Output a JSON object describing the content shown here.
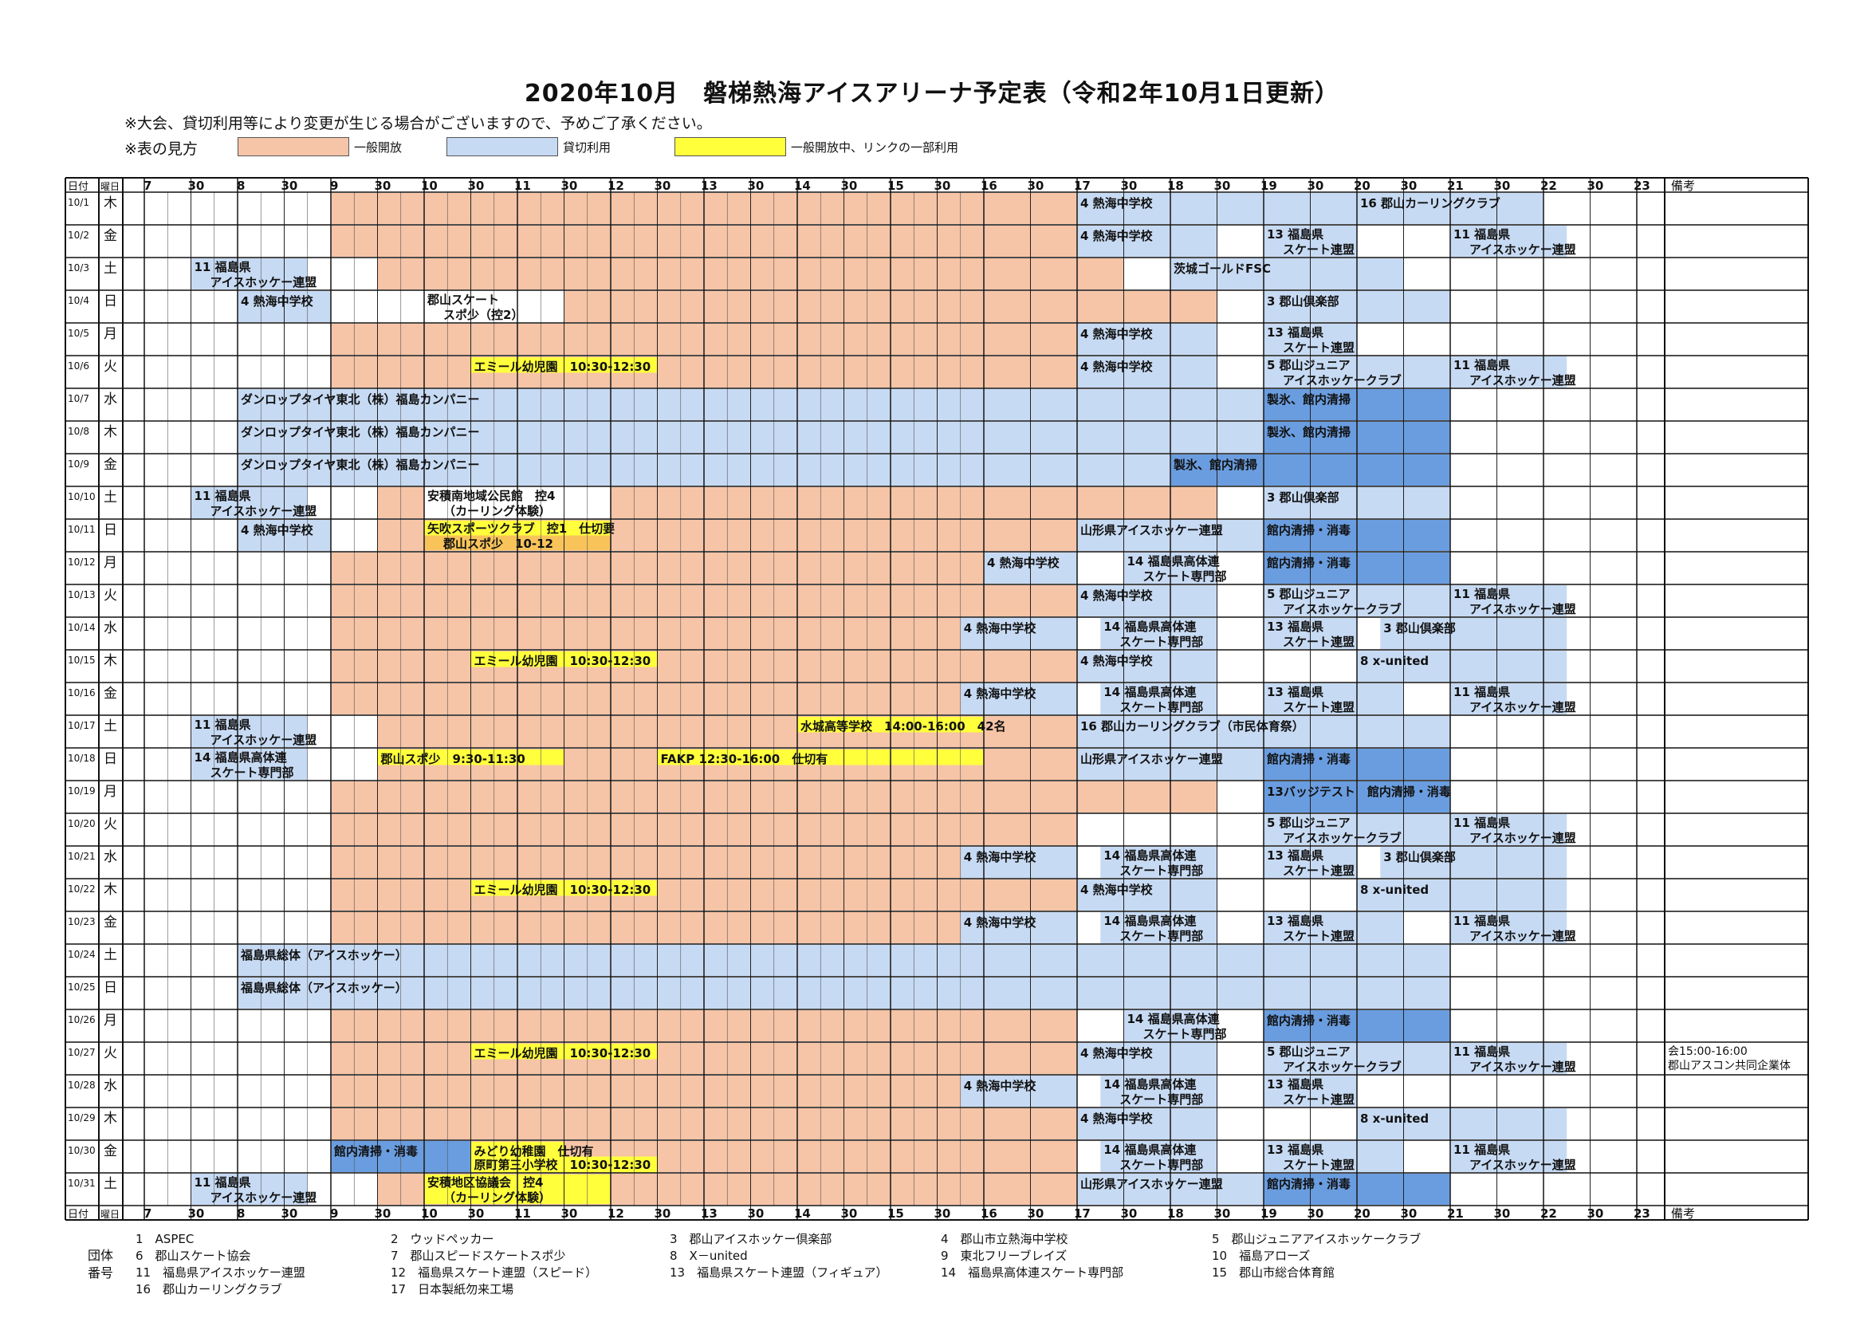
{
  "title": "2020年10月　磐梯熱海アイスアリーナ予定表（令和2年10月1日更新）",
  "note": "※大会、貸切利用等により変更が生じる場合がございますので、予めご了承ください。",
  "legend": {
    "label": "※表の見方",
    "items": [
      {
        "type": "public",
        "text": "一般開放",
        "color": "#f6c4a6"
      },
      {
        "type": "reserved",
        "text": "貸切利用",
        "color": "#c7daf3"
      },
      {
        "type": "partial",
        "text": "一般開放中、リンクの一部利用",
        "color": "#ffff3c"
      }
    ]
  },
  "colors": {
    "public": "#f6c4a6",
    "reserved": "#c7daf3",
    "dark": "#6a9ddf",
    "partial": "#ffff3c",
    "orange": "#f8c45a"
  },
  "header": {
    "date_label": "日付",
    "dow_label": "曜日",
    "remarks_label": "備考",
    "hour_labels": [
      "7",
      "30",
      "8",
      "30",
      "9",
      "30",
      "10",
      "30",
      "11",
      "30",
      "12",
      "30",
      "13",
      "30",
      "14",
      "30",
      "15",
      "30",
      "16",
      "30",
      "17",
      "30",
      "18",
      "30",
      "19",
      "30",
      "20",
      "30",
      "21",
      "30",
      "22",
      "30",
      "23"
    ]
  },
  "days": [
    {
      "date": "10/1",
      "dow": "木",
      "remark": "",
      "slots": [
        {
          "s": 9,
          "e": 17,
          "c": "public"
        },
        {
          "s": 17,
          "e": 20,
          "c": "reserved",
          "l": "4 熱海中学校"
        },
        {
          "s": 20,
          "e": 22,
          "c": "reserved",
          "l": "16 郡山カーリングクラブ"
        }
      ]
    },
    {
      "date": "10/2",
      "dow": "金",
      "remark": "",
      "slots": [
        {
          "s": 9,
          "e": 17,
          "c": "public"
        },
        {
          "s": 17,
          "e": 18.5,
          "c": "reserved",
          "l": "4 熱海中学校"
        },
        {
          "s": 19,
          "e": 20,
          "c": "reserved",
          "l": "13 福島県",
          "l2": "スケート連盟"
        },
        {
          "s": 21,
          "e": 22.25,
          "c": "reserved",
          "l": "11 福島県",
          "l2": "アイスホッケー連盟"
        }
      ]
    },
    {
      "date": "10/3",
      "dow": "土",
      "remark": "",
      "slots": [
        {
          "s": 7.5,
          "e": 8.75,
          "c": "reserved",
          "l": "11 福島県",
          "l2": "アイスホッケー連盟"
        },
        {
          "s": 9.5,
          "e": 17.5,
          "c": "public"
        },
        {
          "s": 18,
          "e": 20.5,
          "c": "reserved",
          "l": "茨城ゴールドFSC"
        }
      ]
    },
    {
      "date": "10/4",
      "dow": "日",
      "remark": "",
      "slots": [
        {
          "s": 8,
          "e": 9,
          "c": "reserved",
          "l": "4 熱海中学校"
        },
        {
          "s": 10,
          "e": 11,
          "c": "plain",
          "l": "郡山スケート",
          "l2": "スポ少（控2）"
        },
        {
          "s": 11.5,
          "e": 18.5,
          "c": "public"
        },
        {
          "s": 19,
          "e": 21,
          "c": "reserved",
          "l": "3 郡山倶楽部"
        }
      ]
    },
    {
      "date": "10/5",
      "dow": "月",
      "remark": "",
      "slots": [
        {
          "s": 9,
          "e": 17,
          "c": "public"
        },
        {
          "s": 17,
          "e": 18.5,
          "c": "reserved",
          "l": "4 熱海中学校"
        },
        {
          "s": 19,
          "e": 20,
          "c": "reserved",
          "l": "13 福島県",
          "l2": "スケート連盟"
        }
      ]
    },
    {
      "date": "10/6",
      "dow": "火",
      "remark": "",
      "slots": [
        {
          "s": 9,
          "e": 17,
          "c": "public"
        },
        {
          "s": 10.5,
          "e": 12.5,
          "c": "partial",
          "l": "エミール幼児園　10:30-12:30"
        },
        {
          "s": 17,
          "e": 18.5,
          "c": "reserved",
          "l": "4 熱海中学校"
        },
        {
          "s": 19,
          "e": 21,
          "c": "reserved",
          "l": "5 郡山ジュニア",
          "l2": "アイスホッケークラブ"
        },
        {
          "s": 21,
          "e": 22.25,
          "c": "reserved",
          "l": "11 福島県",
          "l2": "アイスホッケー連盟"
        }
      ]
    },
    {
      "date": "10/7",
      "dow": "水",
      "remark": "",
      "slots": [
        {
          "s": 8,
          "e": 19,
          "c": "reserved",
          "l": "ダンロップタイヤ東北（株）福島カンパニー"
        },
        {
          "s": 19,
          "e": 21,
          "c": "dark",
          "l": "製氷、館内清掃"
        }
      ]
    },
    {
      "date": "10/8",
      "dow": "木",
      "remark": "",
      "slots": [
        {
          "s": 8,
          "e": 19,
          "c": "reserved",
          "l": "ダンロップタイヤ東北（株）福島カンパニー"
        },
        {
          "s": 19,
          "e": 21,
          "c": "dark",
          "l": "製氷、館内清掃"
        }
      ]
    },
    {
      "date": "10/9",
      "dow": "金",
      "remark": "",
      "slots": [
        {
          "s": 8,
          "e": 18,
          "c": "reserved",
          "l": "ダンロップタイヤ東北（株）福島カンパニー"
        },
        {
          "s": 18,
          "e": 21,
          "c": "dark",
          "l": "製氷、館内清掃"
        }
      ]
    },
    {
      "date": "10/10",
      "dow": "土",
      "remark": "",
      "slots": [
        {
          "s": 7.5,
          "e": 8.75,
          "c": "reserved",
          "l": "11 福島県",
          "l2": "アイスホッケー連盟"
        },
        {
          "s": 9.5,
          "e": 18.5,
          "c": "public"
        },
        {
          "s": 10,
          "e": 12,
          "c": "plain",
          "l": "安積南地域公民館　控4",
          "l2": "（カーリング体験）"
        },
        {
          "s": 19,
          "e": 21,
          "c": "reserved",
          "l": "3 郡山倶楽部"
        }
      ]
    },
    {
      "date": "10/11",
      "dow": "日",
      "remark": "",
      "slots": [
        {
          "s": 8,
          "e": 9,
          "c": "reserved",
          "l": "4 熱海中学校"
        },
        {
          "s": 9.5,
          "e": 17,
          "c": "public"
        },
        {
          "s": 10,
          "e": 12,
          "c": "partial",
          "l": "矢吹スポーツクラブ　控1　仕切要",
          "l2": "郡山スポ少　10-12",
          "c2": "orange"
        },
        {
          "s": 17,
          "e": 19,
          "c": "reserved",
          "l": "山形県アイスホッケー連盟"
        },
        {
          "s": 19,
          "e": 21,
          "c": "dark",
          "l": "館内清掃・消毒"
        }
      ]
    },
    {
      "date": "10/12",
      "dow": "月",
      "remark": "",
      "slots": [
        {
          "s": 9,
          "e": 16,
          "c": "public"
        },
        {
          "s": 16,
          "e": 17,
          "c": "reserved",
          "l": "4 熱海中学校"
        },
        {
          "s": 17.5,
          "e": 18.5,
          "c": "reserved",
          "l": "14 福島県高体連",
          "l2": "スケート専門部"
        },
        {
          "s": 19,
          "e": 21,
          "c": "dark",
          "l": "館内清掃・消毒"
        }
      ]
    },
    {
      "date": "10/13",
      "dow": "火",
      "remark": "",
      "slots": [
        {
          "s": 9,
          "e": 17,
          "c": "public"
        },
        {
          "s": 17,
          "e": 18.5,
          "c": "reserved",
          "l": "4 熱海中学校"
        },
        {
          "s": 19,
          "e": 21,
          "c": "reserved",
          "l": "5 郡山ジュニア",
          "l2": "アイスホッケークラブ"
        },
        {
          "s": 21,
          "e": 22.25,
          "c": "reserved",
          "l": "11 福島県",
          "l2": "アイスホッケー連盟"
        }
      ]
    },
    {
      "date": "10/14",
      "dow": "水",
      "remark": "",
      "slots": [
        {
          "s": 9,
          "e": 15.75,
          "c": "public"
        },
        {
          "s": 15.75,
          "e": 17,
          "c": "reserved",
          "l": "4 熱海中学校"
        },
        {
          "s": 17.25,
          "e": 18.5,
          "c": "reserved",
          "l": "14 福島県高体連",
          "l2": "スケート専門部"
        },
        {
          "s": 19,
          "e": 20,
          "c": "reserved",
          "l": "13 福島県",
          "l2": "スケート連盟"
        },
        {
          "s": 20.25,
          "e": 22.25,
          "c": "reserved",
          "l": "3 郡山倶楽部"
        }
      ]
    },
    {
      "date": "10/15",
      "dow": "木",
      "remark": "",
      "slots": [
        {
          "s": 9,
          "e": 17,
          "c": "public"
        },
        {
          "s": 10.5,
          "e": 12.5,
          "c": "partial",
          "l": "エミール幼児園　10:30-12:30"
        },
        {
          "s": 17,
          "e": 18.5,
          "c": "reserved",
          "l": "4 熱海中学校"
        },
        {
          "s": 20,
          "e": 22.25,
          "c": "reserved",
          "l": "8 x-united"
        }
      ]
    },
    {
      "date": "10/16",
      "dow": "金",
      "remark": "",
      "slots": [
        {
          "s": 9,
          "e": 15.75,
          "c": "public"
        },
        {
          "s": 15.75,
          "e": 17,
          "c": "reserved",
          "l": "4 熱海中学校"
        },
        {
          "s": 17.25,
          "e": 18.5,
          "c": "reserved",
          "l": "14 福島県高体連",
          "l2": "スケート専門部"
        },
        {
          "s": 19,
          "e": 20.5,
          "c": "reserved",
          "l": "13 福島県",
          "l2": "スケート連盟"
        },
        {
          "s": 21,
          "e": 22.25,
          "c": "reserved",
          "l": "11 福島県",
          "l2": "アイスホッケー連盟"
        }
      ]
    },
    {
      "date": "10/17",
      "dow": "土",
      "remark": "",
      "slots": [
        {
          "s": 7.5,
          "e": 8.75,
          "c": "reserved",
          "l": "11 福島県",
          "l2": "アイスホッケー連盟"
        },
        {
          "s": 9.5,
          "e": 17,
          "c": "public"
        },
        {
          "s": 14,
          "e": 16,
          "c": "partial",
          "l": "水城高等学校　14:00-16:00　42名"
        },
        {
          "s": 17,
          "e": 21,
          "c": "reserved",
          "l": "16 郡山カーリングクラブ（市民体育祭）"
        }
      ]
    },
    {
      "date": "10/18",
      "dow": "日",
      "remark": "",
      "slots": [
        {
          "s": 7.5,
          "e": 8.75,
          "c": "reserved",
          "l": "14 福島県高体連",
          "l2": "スケート専門部"
        },
        {
          "s": 9.5,
          "e": 17,
          "c": "public"
        },
        {
          "s": 9.5,
          "e": 11.5,
          "c": "partial",
          "l": "郡山スポ少　9:30-11:30"
        },
        {
          "s": 12.5,
          "e": 16,
          "c": "partial",
          "l": "FAKP 12:30-16:00　仕切有"
        },
        {
          "s": 17,
          "e": 19,
          "c": "reserved",
          "l": "山形県アイスホッケー連盟"
        },
        {
          "s": 19,
          "e": 21,
          "c": "dark",
          "l": "館内清掃・消毒"
        }
      ]
    },
    {
      "date": "10/19",
      "dow": "月",
      "remark": "",
      "slots": [
        {
          "s": 9,
          "e": 18.5,
          "c": "public"
        },
        {
          "s": 19,
          "e": 21,
          "c": "dark",
          "l": "13バッジテスト　館内清掃・消毒"
        }
      ]
    },
    {
      "date": "10/20",
      "dow": "火",
      "remark": "",
      "slots": [
        {
          "s": 9,
          "e": 17,
          "c": "public"
        },
        {
          "s": 19,
          "e": 21,
          "c": "reserved",
          "l": "5 郡山ジュニア",
          "l2": "アイスホッケークラブ"
        },
        {
          "s": 21,
          "e": 22.25,
          "c": "reserved",
          "l": "11 福島県",
          "l2": "アイスホッケー連盟"
        }
      ]
    },
    {
      "date": "10/21",
      "dow": "水",
      "remark": "",
      "slots": [
        {
          "s": 9,
          "e": 15.75,
          "c": "public"
        },
        {
          "s": 15.75,
          "e": 17,
          "c": "reserved",
          "l": "4 熱海中学校"
        },
        {
          "s": 17.25,
          "e": 18.5,
          "c": "reserved",
          "l": "14 福島県高体連",
          "l2": "スケート専門部"
        },
        {
          "s": 19,
          "e": 20,
          "c": "reserved",
          "l": "13 福島県",
          "l2": "スケート連盟"
        },
        {
          "s": 20.25,
          "e": 22.25,
          "c": "reserved",
          "l": "3 郡山倶楽部"
        }
      ]
    },
    {
      "date": "10/22",
      "dow": "木",
      "remark": "",
      "slots": [
        {
          "s": 9,
          "e": 17,
          "c": "public"
        },
        {
          "s": 10.5,
          "e": 12.5,
          "c": "partial",
          "l": "エミール幼児園　10:30-12:30"
        },
        {
          "s": 17,
          "e": 18.5,
          "c": "reserved",
          "l": "4 熱海中学校"
        },
        {
          "s": 20,
          "e": 22.25,
          "c": "reserved",
          "l": "8 x-united"
        }
      ]
    },
    {
      "date": "10/23",
      "dow": "金",
      "remark": "",
      "slots": [
        {
          "s": 9,
          "e": 15.75,
          "c": "public"
        },
        {
          "s": 15.75,
          "e": 17,
          "c": "reserved",
          "l": "4 熱海中学校"
        },
        {
          "s": 17.25,
          "e": 18.5,
          "c": "reserved",
          "l": "14 福島県高体連",
          "l2": "スケート専門部"
        },
        {
          "s": 19,
          "e": 20.5,
          "c": "reserved",
          "l": "13 福島県",
          "l2": "スケート連盟"
        },
        {
          "s": 21,
          "e": 22.25,
          "c": "reserved",
          "l": "11 福島県",
          "l2": "アイスホッケー連盟"
        }
      ]
    },
    {
      "date": "10/24",
      "dow": "土",
      "remark": "",
      "slots": [
        {
          "s": 8,
          "e": 21,
          "c": "reserved",
          "l": "福島県総体（アイスホッケー）"
        }
      ]
    },
    {
      "date": "10/25",
      "dow": "日",
      "remark": "",
      "slots": [
        {
          "s": 8,
          "e": 21,
          "c": "reserved",
          "l": "福島県総体（アイスホッケー）"
        }
      ]
    },
    {
      "date": "10/26",
      "dow": "月",
      "remark": "",
      "slots": [
        {
          "s": 9,
          "e": 17,
          "c": "public"
        },
        {
          "s": 17.5,
          "e": 18.5,
          "c": "reserved",
          "l": "14 福島県高体連",
          "l2": "スケート専門部"
        },
        {
          "s": 19,
          "e": 21,
          "c": "dark",
          "l": "館内清掃・消毒"
        }
      ]
    },
    {
      "date": "10/27",
      "dow": "火",
      "remark": "会15:00-16:00 郡山アスコン共同企業体",
      "remarks": [
        "会15:00-16:00",
        "郡山アスコン共同企業体"
      ],
      "slots": [
        {
          "s": 9,
          "e": 17,
          "c": "public"
        },
        {
          "s": 10.5,
          "e": 12.5,
          "c": "partial",
          "l": "エミール幼児園　10:30-12:30"
        },
        {
          "s": 17,
          "e": 18.5,
          "c": "reserved",
          "l": "4 熱海中学校"
        },
        {
          "s": 19,
          "e": 21,
          "c": "reserved",
          "l": "5 郡山ジュニア",
          "l2": "アイスホッケークラブ"
        },
        {
          "s": 21,
          "e": 22.25,
          "c": "reserved",
          "l": "11 福島県",
          "l2": "アイスホッケー連盟"
        }
      ]
    },
    {
      "date": "10/28",
      "dow": "水",
      "remark": "",
      "slots": [
        {
          "s": 9,
          "e": 15.75,
          "c": "public"
        },
        {
          "s": 15.75,
          "e": 17,
          "c": "reserved",
          "l": "4 熱海中学校"
        },
        {
          "s": 17.25,
          "e": 18.5,
          "c": "reserved",
          "l": "14 福島県高体連",
          "l2": "スケート専門部"
        },
        {
          "s": 19,
          "e": 20,
          "c": "reserved",
          "l": "13 福島県",
          "l2": "スケート連盟"
        }
      ]
    },
    {
      "date": "10/29",
      "dow": "木",
      "remark": "",
      "slots": [
        {
          "s": 9,
          "e": 17,
          "c": "public"
        },
        {
          "s": 17,
          "e": 18.5,
          "c": "reserved",
          "l": "4 熱海中学校"
        },
        {
          "s": 20,
          "e": 22.25,
          "c": "reserved",
          "l": "8 x-united"
        }
      ]
    },
    {
      "date": "10/30",
      "dow": "金",
      "remark": "",
      "slots": [
        {
          "s": 9,
          "e": 10.5,
          "c": "dark",
          "l": "館内清掃・消毒"
        },
        {
          "s": 10.5,
          "e": 17,
          "c": "public"
        },
        {
          "s": 10.5,
          "e": 11.5,
          "c": "partial",
          "l": "みどり幼稚園　仕切有"
        },
        {
          "s": 10.5,
          "e": 12.5,
          "c": "partial",
          "l2": "原町第三小学校　10:30-12:30",
          "half": "bottom"
        },
        {
          "s": 17.25,
          "e": 18.5,
          "c": "reserved",
          "l": "14 福島県高体連",
          "l2": "スケート専門部"
        },
        {
          "s": 19,
          "e": 20.5,
          "c": "reserved",
          "l": "13 福島県",
          "l2": "スケート連盟"
        },
        {
          "s": 21,
          "e": 22.25,
          "c": "reserved",
          "l": "11 福島県",
          "l2": "アイスホッケー連盟"
        }
      ]
    },
    {
      "date": "10/31",
      "dow": "土",
      "remark": "",
      "slots": [
        {
          "s": 7.5,
          "e": 8.75,
          "c": "reserved",
          "l": "11 福島県",
          "l2": "アイスホッケー連盟"
        },
        {
          "s": 9.5,
          "e": 17,
          "c": "public"
        },
        {
          "s": 10,
          "e": 12,
          "c": "partial",
          "l": "安積地区協議会　控4",
          "l2": "（カーリング体験）"
        },
        {
          "s": 17,
          "e": 19,
          "c": "reserved",
          "l": "山形県アイスホッケー連盟"
        },
        {
          "s": 19,
          "e": 21,
          "c": "dark",
          "l": "館内清掃・消毒"
        }
      ]
    }
  ],
  "footer": {
    "side_label_1": "団体",
    "side_label_2": "番号",
    "groups": [
      "1　ASPEC",
      "2　ウッドペッカー",
      "3　郡山アイスホッケー倶楽部",
      "4　郡山市立熱海中学校",
      "5　郡山ジュニアアイスホッケークラブ",
      "6　郡山スケート協会",
      "7　郡山スピードスケートスポ少",
      "8　X－united",
      "9　東北フリーブレイズ",
      "10　福島アローズ",
      "11　福島県アイスホッケー連盟",
      "12　福島県スケート連盟（スピード）",
      "13　福島県スケート連盟（フィギュア）",
      "14　福島県高体連スケート専門部",
      "15　郡山市総合体育館",
      "16　郡山カーリングクラブ",
      "17　日本製紙勿来工場"
    ]
  }
}
